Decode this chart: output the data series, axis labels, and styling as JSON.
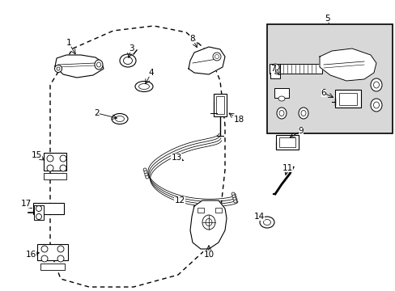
{
  "bg_color": "#ffffff",
  "line_color": "#000000",
  "text_color": "#000000",
  "fig_width": 4.89,
  "fig_height": 3.6,
  "dpi": 100,
  "inset_shade": "#d8d8d8",
  "label_fontsize": 7.5
}
